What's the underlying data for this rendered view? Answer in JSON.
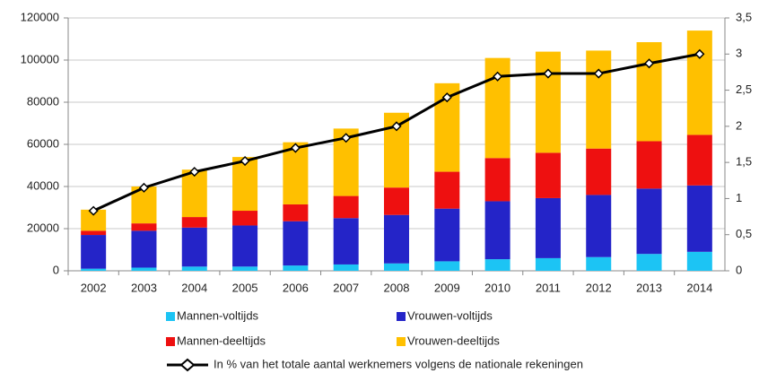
{
  "chart_data": {
    "type": "bar",
    "stacked": true,
    "categories": [
      "2002",
      "2003",
      "2004",
      "2005",
      "2006",
      "2007",
      "2008",
      "2009",
      "2010",
      "2011",
      "2012",
      "2013",
      "2014"
    ],
    "series": [
      {
        "name": "Mannen-voltijds",
        "color": "#1cc4f4",
        "values": [
          1000,
          1500,
          2000,
          2000,
          2500,
          3000,
          3500,
          4500,
          5500,
          6000,
          6500,
          8000,
          9000
        ]
      },
      {
        "name": "Vrouwen-voltijds",
        "color": "#2424c8",
        "values": [
          16000,
          17500,
          18500,
          19500,
          21000,
          22000,
          23000,
          25000,
          27500,
          28500,
          29500,
          31000,
          31500
        ]
      },
      {
        "name": "Mannen-deeltijds",
        "color": "#ee1010",
        "values": [
          2000,
          3500,
          5000,
          7000,
          8000,
          10500,
          13000,
          17500,
          20500,
          21500,
          22000,
          22500,
          24000
        ]
      },
      {
        "name": "Vrouwen-deeltijds",
        "color": "#ffc000",
        "values": [
          10000,
          17500,
          22500,
          25500,
          29500,
          32000,
          35500,
          42000,
          47500,
          48000,
          46500,
          47000,
          49500
        ]
      },
      {
        "name": "In % van het totale aantal werknemers volgens de nationale rekeningen",
        "color": "#000000",
        "type": "line",
        "axis": "y2",
        "values": [
          0.83,
          1.15,
          1.37,
          1.52,
          1.7,
          1.84,
          2.0,
          2.4,
          2.69,
          2.73,
          2.73,
          2.87,
          3.0
        ]
      }
    ],
    "ylim": [
      0,
      120000
    ],
    "yticks": [
      0,
      20000,
      40000,
      60000,
      80000,
      100000,
      120000
    ],
    "y2lim": [
      0,
      3.5
    ],
    "y2ticks": [
      0,
      {
        "value": 0.5,
        "label": "0,5"
      },
      1,
      {
        "value": 1.5,
        "label": "1,5"
      },
      2,
      {
        "value": 2.5,
        "label": "2,5"
      },
      3,
      {
        "value": 3.5,
        "label": "3,5"
      }
    ],
    "grid": true,
    "legend": "bottom"
  }
}
